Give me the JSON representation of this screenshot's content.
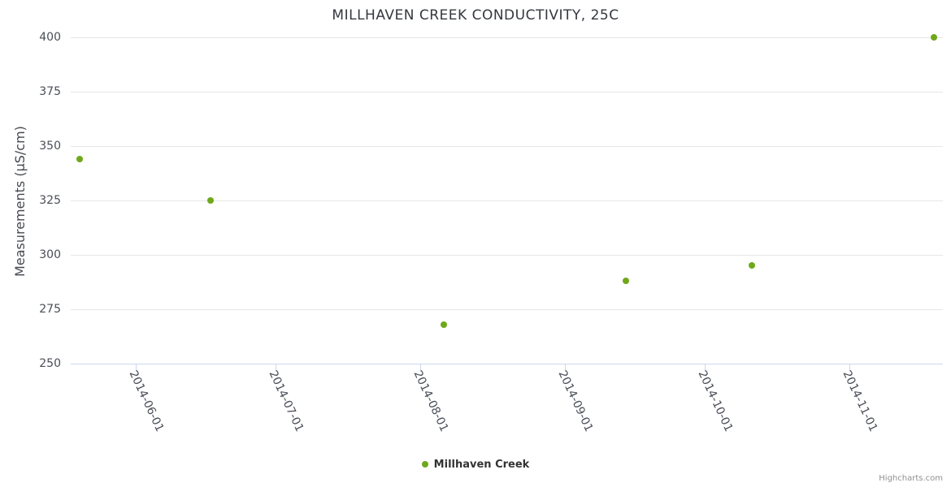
{
  "chart_data": {
    "type": "scatter",
    "title": "MILLHAVEN CREEK CONDUCTIVITY, 25C",
    "xlabel": "",
    "ylabel": "Measurements (µS/cm)",
    "ylim": [
      250,
      400
    ],
    "y_ticks": [
      400,
      375,
      350,
      325,
      300,
      275,
      250
    ],
    "x_ticks": [
      {
        "label": "2014-06-01",
        "date": "2014-06-01"
      },
      {
        "label": "2014-07-01",
        "date": "2014-07-01"
      },
      {
        "label": "2014-08-01",
        "date": "2014-08-01"
      },
      {
        "label": "2014-09-01",
        "date": "2014-09-01"
      },
      {
        "label": "2014-10-01",
        "date": "2014-10-01"
      },
      {
        "label": "2014-11-01",
        "date": "2014-11-01"
      }
    ],
    "x_range": [
      "2014-05-18",
      "2014-11-21"
    ],
    "grid": true,
    "legend_position": "bottom-center",
    "series": [
      {
        "name": "Millhaven Creek",
        "color": "#6fa81a",
        "points": [
          {
            "date": "2014-05-20",
            "value": 344
          },
          {
            "date": "2014-06-17",
            "value": 325
          },
          {
            "date": "2014-08-06",
            "value": 268
          },
          {
            "date": "2014-09-14",
            "value": 288
          },
          {
            "date": "2014-10-11",
            "value": 295
          },
          {
            "date": "2014-11-19",
            "value": 400
          }
        ]
      }
    ]
  },
  "legend": {
    "label": "Millhaven Creek"
  },
  "credits": {
    "label": "Highcharts.com"
  },
  "colors": {
    "marker": "#6fa81a",
    "gridline": "#e6e6e6",
    "axis_line": "#ccd6eb",
    "title_text": "#34383f",
    "axis_text": "#4a4e57",
    "legend_text": "#333333",
    "credits_text": "#909090",
    "background": "#ffffff"
  }
}
